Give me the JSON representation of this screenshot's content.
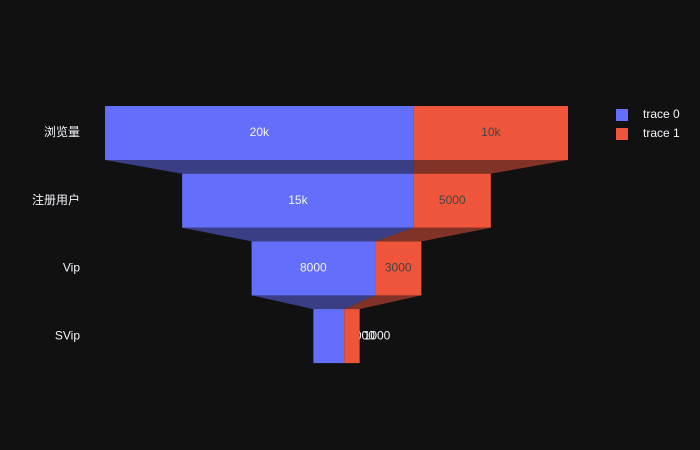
{
  "chart_data": {
    "type": "funnel",
    "categories": [
      "浏览量",
      "注册用户",
      "Vip",
      "SVip"
    ],
    "series": [
      {
        "name": "trace 0",
        "color": "#636efa",
        "values": [
          20000,
          15000,
          8000,
          2000
        ],
        "value_labels": [
          "20k",
          "15k",
          "8000",
          "2000"
        ]
      },
      {
        "name": "trace 1",
        "color": "#ef553b",
        "values": [
          10000,
          5000,
          3000,
          1000
        ],
        "value_labels": [
          "10k",
          "5000",
          "3000",
          "1000"
        ]
      }
    ],
    "legend": "top-right"
  }
}
